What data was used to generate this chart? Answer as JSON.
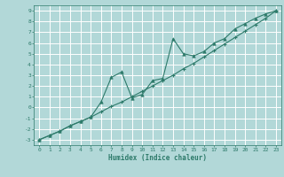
{
  "xlabel": "Humidex (Indice chaleur)",
  "background_color": "#b2d8d8",
  "grid_color": "#ffffff",
  "line_color": "#2d7a6a",
  "xlim": [
    -0.5,
    23.5
  ],
  "ylim": [
    -3.5,
    9.5
  ],
  "xticks": [
    0,
    1,
    2,
    3,
    4,
    5,
    6,
    7,
    8,
    9,
    10,
    11,
    12,
    13,
    14,
    15,
    16,
    17,
    18,
    19,
    20,
    21,
    22,
    23
  ],
  "yticks": [
    -3,
    -2,
    -1,
    0,
    1,
    2,
    3,
    4,
    5,
    6,
    7,
    8,
    9
  ],
  "series1_x": [
    0,
    1,
    2,
    3,
    4,
    5,
    6,
    7,
    8,
    9,
    10,
    11,
    12,
    13,
    14,
    15,
    16,
    17,
    18,
    19,
    20,
    21,
    22,
    23
  ],
  "series1_y": [
    -3.0,
    -2.6,
    -2.2,
    -1.7,
    -1.3,
    -0.9,
    -0.4,
    0.1,
    0.5,
    1.0,
    1.5,
    2.0,
    2.5,
    3.0,
    3.6,
    4.1,
    4.7,
    5.3,
    5.9,
    6.5,
    7.1,
    7.7,
    8.3,
    9.0
  ],
  "series2_x": [
    0,
    1,
    2,
    3,
    4,
    5,
    6,
    7,
    8,
    9,
    10,
    11,
    12,
    13,
    14,
    15,
    16,
    17,
    18,
    19,
    20,
    21,
    22,
    23
  ],
  "series2_y": [
    -3.0,
    -2.6,
    -2.2,
    -1.7,
    -1.3,
    -0.9,
    0.5,
    2.8,
    3.3,
    0.9,
    1.2,
    2.5,
    2.7,
    6.4,
    5.0,
    4.8,
    5.2,
    6.0,
    6.4,
    7.3,
    7.8,
    8.3,
    8.7,
    9.0
  ]
}
